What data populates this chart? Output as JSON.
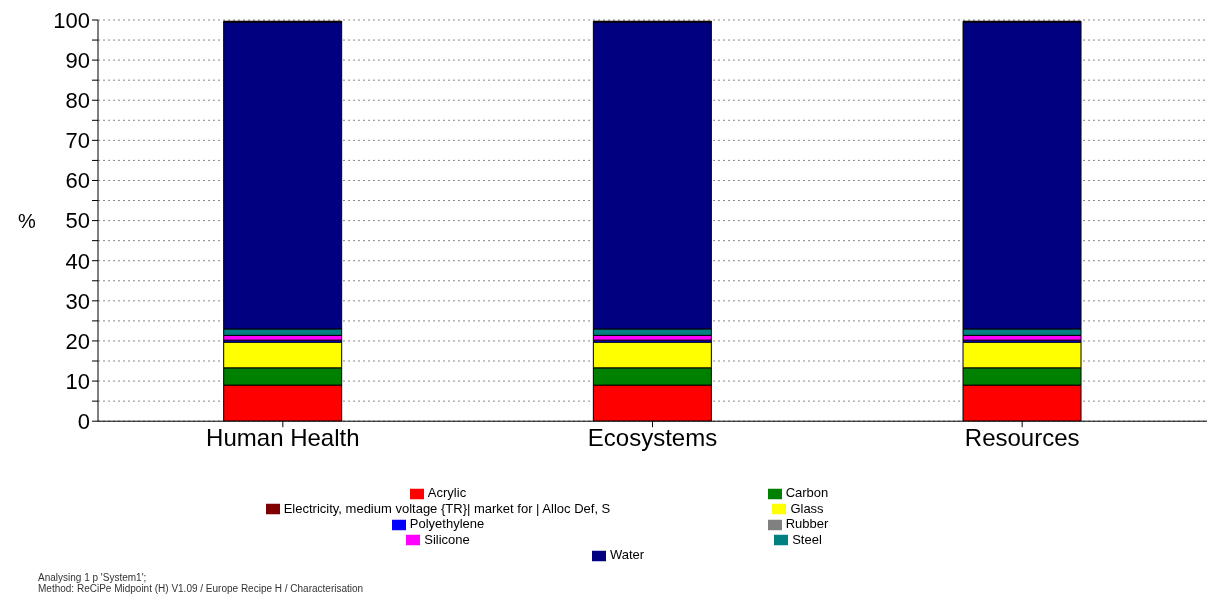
{
  "chart_data": {
    "type": "bar",
    "stacked": true,
    "ylabel": "%",
    "categories": [
      "Human Health",
      "Ecosystems",
      "Resources"
    ],
    "series": [
      {
        "name": "Acrylic",
        "color": "#ff0000",
        "values": [
          9,
          9,
          9
        ]
      },
      {
        "name": "Carbon",
        "color": "#008000",
        "values": [
          4.3,
          4.3,
          4.3
        ]
      },
      {
        "name": "Glass",
        "color": "#ffff00",
        "values": [
          6.4,
          6.4,
          6.4
        ]
      },
      {
        "name": "Polyethylene",
        "color": "#0000ff",
        "values": [
          0.5,
          0.5,
          0.5
        ]
      },
      {
        "name": "Rubber",
        "color": "#808080",
        "values": [
          null,
          null,
          null
        ]
      },
      {
        "name": "Silicone",
        "color": "#ff00ff",
        "values": [
          1.2,
          1.2,
          1.2
        ]
      },
      {
        "name": "Steel",
        "color": "#008080",
        "values": [
          1.6,
          1.6,
          1.6
        ]
      },
      {
        "name": "Water",
        "color": "#000080",
        "values": [
          76.5,
          76.5,
          76.5
        ]
      },
      {
        "name": "Electricity, medium voltage {TR}| market for | Alloc Def, S",
        "color": "#800000",
        "values": [
          0.2,
          0.2,
          0.2
        ]
      }
    ],
    "ylim": [
      0,
      100
    ],
    "yticks": [
      0,
      {
        "value": 5,
        "label": null
      },
      10,
      {
        "value": 15,
        "label": null
      },
      20,
      {
        "value": 25,
        "label": null
      },
      30,
      {
        "value": 35,
        "label": null
      },
      40,
      {
        "value": 45,
        "label": null
      },
      50,
      {
        "value": 55,
        "label": null
      },
      60,
      {
        "value": 65,
        "label": null
      },
      70,
      {
        "value": 75,
        "label": null
      },
      80,
      {
        "value": 85,
        "label": null
      },
      90,
      {
        "value": 95,
        "label": null
      },
      100
    ],
    "grid": "y",
    "legend": "bottom",
    "annotations": [
      "Analysing 1 p 'System1';",
      "Method: ReCiPe Midpoint (H) V1.09 / Europe Recipe H / Characterisation"
    ]
  }
}
